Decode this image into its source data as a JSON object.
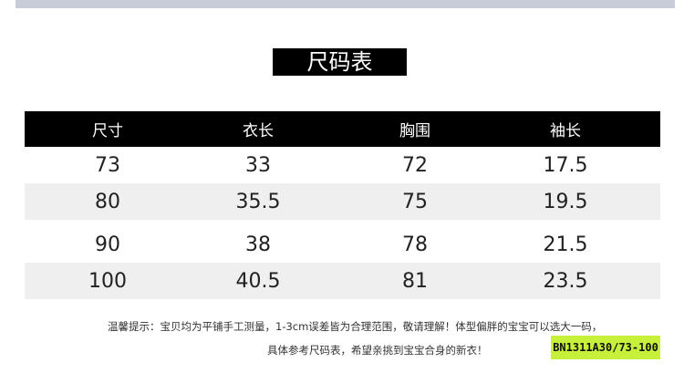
{
  "title": "尺码表",
  "table": {
    "headers": [
      "尺寸",
      "衣长",
      "胸围",
      "袖长"
    ],
    "rows": [
      [
        "73",
        "33",
        "72",
        "17.5"
      ],
      [
        "80",
        "35.5",
        "75",
        "19.5"
      ],
      [
        "90",
        "38",
        "78",
        "21.5"
      ],
      [
        "100",
        "40.5",
        "81",
        "23.5"
      ]
    ]
  },
  "notes": [
    "温馨提示：宝贝均为平铺手工测量，1-3cm误差皆为合理范围，敬请理解！体型偏胖的宝宝可以选大一码，",
    "具体参考尺码表，希望亲挑到宝宝合身的新衣！"
  ],
  "badge": "BN1311A30/73-100",
  "colors": {
    "badge": "#c6f03a",
    "header": "#000000",
    "alt_row": "#efefef",
    "top_band": "#c8ccd9"
  }
}
